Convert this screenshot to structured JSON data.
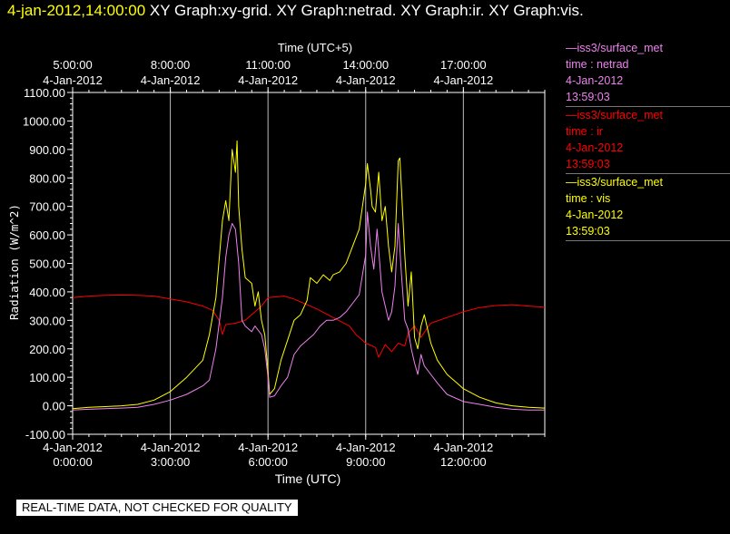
{
  "header": {
    "timestamp": "4-jan-2012,14:00:00",
    "graphs": [
      "XY Graph:xy-grid.",
      "XY Graph:netrad.",
      "XY Graph:ir.",
      "XY Graph:vis."
    ]
  },
  "legend": [
    {
      "source": "—iss3/surface_met",
      "var": "time : netrad",
      "date": "4-Jan-2012",
      "time": "13:59:03",
      "color": "#ee82ee"
    },
    {
      "source": "—iss3/surface_met",
      "var": "time : ir",
      "date": "4-Jan-2012",
      "time": "13:59:03",
      "color": "#ff0000"
    },
    {
      "source": "—iss3/surface_met",
      "var": "time : vis",
      "date": "4-Jan-2012",
      "time": "13:59:03",
      "color": "#ffff00"
    }
  ],
  "footer_note": "REAL-TIME DATA, NOT CHECKED FOR QUALITY",
  "chart_data": {
    "type": "line",
    "xlabel": "Time (UTC)",
    "x2label": "Time (UTC+5)",
    "ylabel": "Radiation (W/m^2)",
    "xlim": [
      0,
      14.5
    ],
    "ylim": [
      -100,
      1100
    ],
    "grid": "vertical",
    "x_ticks": [
      {
        "hour": 0,
        "date": "4-Jan-2012",
        "time": "0:00:00"
      },
      {
        "hour": 3,
        "date": "4-Jan-2012",
        "time": "3:00:00"
      },
      {
        "hour": 6,
        "date": "4-Jan-2012",
        "time": "6:00:00"
      },
      {
        "hour": 9,
        "date": "4-Jan-2012",
        "time": "9:00:00"
      },
      {
        "hour": 12,
        "date": "4-Jan-2012",
        "time": "12:00:00"
      }
    ],
    "x2_ticks": [
      {
        "hour": 0,
        "date": "4-Jan-2012",
        "time": "5:00:00"
      },
      {
        "hour": 3,
        "date": "4-Jan-2012",
        "time": "8:00:00"
      },
      {
        "hour": 6,
        "date": "4-Jan-2012",
        "time": "11:00:00"
      },
      {
        "hour": 9,
        "date": "4-Jan-2012",
        "time": "14:00:00"
      },
      {
        "hour": 12,
        "date": "4-Jan-2012",
        "time": "17:00:00"
      }
    ],
    "y_ticks": [
      {
        "value": 1100,
        "label": "1100.00"
      },
      {
        "value": 1000,
        "label": "1000.00"
      },
      {
        "value": 900,
        "label": "900.00"
      },
      {
        "value": 800,
        "label": "800.00"
      },
      {
        "value": 700,
        "label": "700.00"
      },
      {
        "value": 600,
        "label": "600.00"
      },
      {
        "value": 500,
        "label": "500.00"
      },
      {
        "value": 400,
        "label": "400.00"
      },
      {
        "value": 300,
        "label": "300.00"
      },
      {
        "value": 200,
        "label": "200.00"
      },
      {
        "value": 100,
        "label": "100.00"
      },
      {
        "value": 0,
        "label": "0.00"
      },
      {
        "value": -100,
        "label": "-100.00"
      }
    ],
    "series": [
      {
        "color": "#ff0000",
        "points": [
          [
            0,
            380
          ],
          [
            0.5,
            385
          ],
          [
            1,
            388
          ],
          [
            1.5,
            389
          ],
          [
            2,
            388
          ],
          [
            2.5,
            385
          ],
          [
            3,
            375
          ],
          [
            3.5,
            365
          ],
          [
            4,
            350
          ],
          [
            4.3,
            335
          ],
          [
            4.5,
            300
          ],
          [
            4.6,
            250
          ],
          [
            4.7,
            285
          ],
          [
            5,
            290
          ],
          [
            5.3,
            300
          ],
          [
            5.5,
            320
          ],
          [
            5.8,
            350
          ],
          [
            6,
            380
          ],
          [
            6.5,
            385
          ],
          [
            6.8,
            375
          ],
          [
            7,
            365
          ],
          [
            7.5,
            340
          ],
          [
            8,
            310
          ],
          [
            8.5,
            280
          ],
          [
            8.7,
            250
          ],
          [
            9,
            220
          ],
          [
            9.3,
            205
          ],
          [
            9.4,
            170
          ],
          [
            9.6,
            215
          ],
          [
            9.8,
            190
          ],
          [
            10,
            220
          ],
          [
            10.2,
            210
          ],
          [
            10.3,
            255
          ],
          [
            10.5,
            280
          ],
          [
            10.7,
            240
          ],
          [
            10.9,
            275
          ],
          [
            11,
            290
          ],
          [
            11.5,
            310
          ],
          [
            12,
            330
          ],
          [
            12.5,
            345
          ],
          [
            13,
            352
          ],
          [
            13.5,
            355
          ],
          [
            14,
            350
          ],
          [
            14.5,
            346
          ]
        ]
      },
      {
        "color": "#ffff00",
        "points": [
          [
            0,
            -10
          ],
          [
            0.5,
            -5
          ],
          [
            1,
            -3
          ],
          [
            1.5,
            0
          ],
          [
            2,
            5
          ],
          [
            2.5,
            20
          ],
          [
            3,
            50
          ],
          [
            3.5,
            100
          ],
          [
            4,
            160
          ],
          [
            4.2,
            250
          ],
          [
            4.4,
            380
          ],
          [
            4.6,
            650
          ],
          [
            4.7,
            720
          ],
          [
            4.8,
            650
          ],
          [
            4.9,
            900
          ],
          [
            5,
            820
          ],
          [
            5.05,
            930
          ],
          [
            5.1,
            700
          ],
          [
            5.2,
            550
          ],
          [
            5.3,
            450
          ],
          [
            5.5,
            430
          ],
          [
            5.6,
            350
          ],
          [
            5.7,
            400
          ],
          [
            5.8,
            300
          ],
          [
            5.9,
            250
          ],
          [
            6,
            120
          ],
          [
            6.05,
            40
          ],
          [
            6.2,
            60
          ],
          [
            6.4,
            160
          ],
          [
            6.6,
            230
          ],
          [
            6.8,
            300
          ],
          [
            7,
            320
          ],
          [
            7.2,
            370
          ],
          [
            7.3,
            450
          ],
          [
            7.5,
            430
          ],
          [
            7.7,
            460
          ],
          [
            7.9,
            440
          ],
          [
            8,
            460
          ],
          [
            8.2,
            470
          ],
          [
            8.4,
            500
          ],
          [
            8.6,
            560
          ],
          [
            8.8,
            620
          ],
          [
            9.0,
            780
          ],
          [
            9.05,
            850
          ],
          [
            9.15,
            760
          ],
          [
            9.2,
            700
          ],
          [
            9.3,
            680
          ],
          [
            9.4,
            820
          ],
          [
            9.5,
            650
          ],
          [
            9.6,
            700
          ],
          [
            9.7,
            560
          ],
          [
            9.8,
            470
          ],
          [
            9.9,
            560
          ],
          [
            10.0,
            860
          ],
          [
            10.05,
            870
          ],
          [
            10.1,
            760
          ],
          [
            10.2,
            530
          ],
          [
            10.3,
            350
          ],
          [
            10.4,
            470
          ],
          [
            10.5,
            240
          ],
          [
            10.6,
            200
          ],
          [
            10.7,
            280
          ],
          [
            10.8,
            320
          ],
          [
            11,
            220
          ],
          [
            11.2,
            160
          ],
          [
            11.5,
            110
          ],
          [
            11.8,
            80
          ],
          [
            12,
            60
          ],
          [
            12.5,
            30
          ],
          [
            13,
            10
          ],
          [
            13.5,
            0
          ],
          [
            14,
            -5
          ],
          [
            14.5,
            -8
          ]
        ]
      },
      {
        "color": "#ee82ee",
        "points": [
          [
            0,
            -15
          ],
          [
            0.5,
            -12
          ],
          [
            1,
            -10
          ],
          [
            1.5,
            -8
          ],
          [
            2,
            -5
          ],
          [
            2.5,
            5
          ],
          [
            3,
            20
          ],
          [
            3.5,
            40
          ],
          [
            4,
            70
          ],
          [
            4.2,
            90
          ],
          [
            4.4,
            200
          ],
          [
            4.6,
            380
          ],
          [
            4.7,
            520
          ],
          [
            4.8,
            600
          ],
          [
            4.9,
            640
          ],
          [
            5,
            620
          ],
          [
            5.1,
            500
          ],
          [
            5.2,
            300
          ],
          [
            5.3,
            280
          ],
          [
            5.5,
            260
          ],
          [
            5.6,
            280
          ],
          [
            5.8,
            250
          ],
          [
            5.9,
            200
          ],
          [
            6,
            100
          ],
          [
            6.05,
            30
          ],
          [
            6.2,
            35
          ],
          [
            6.4,
            70
          ],
          [
            6.6,
            100
          ],
          [
            6.8,
            180
          ],
          [
            7,
            210
          ],
          [
            7.2,
            230
          ],
          [
            7.4,
            250
          ],
          [
            7.6,
            280
          ],
          [
            7.8,
            300
          ],
          [
            8,
            300
          ],
          [
            8.2,
            310
          ],
          [
            8.4,
            330
          ],
          [
            8.6,
            360
          ],
          [
            8.8,
            390
          ],
          [
            9,
            530
          ],
          [
            9.05,
            680
          ],
          [
            9.15,
            560
          ],
          [
            9.25,
            480
          ],
          [
            9.35,
            620
          ],
          [
            9.5,
            400
          ],
          [
            9.7,
            300
          ],
          [
            9.8,
            330
          ],
          [
            9.9,
            420
          ],
          [
            10,
            640
          ],
          [
            10.1,
            460
          ],
          [
            10.2,
            300
          ],
          [
            10.3,
            270
          ],
          [
            10.4,
            200
          ],
          [
            10.5,
            150
          ],
          [
            10.6,
            110
          ],
          [
            10.7,
            180
          ],
          [
            10.8,
            140
          ],
          [
            11,
            110
          ],
          [
            11.2,
            80
          ],
          [
            11.5,
            40
          ],
          [
            12,
            15
          ],
          [
            12.5,
            5
          ],
          [
            13,
            -5
          ],
          [
            13.5,
            -12
          ],
          [
            14,
            -15
          ],
          [
            14.5,
            -15
          ]
        ]
      }
    ]
  }
}
